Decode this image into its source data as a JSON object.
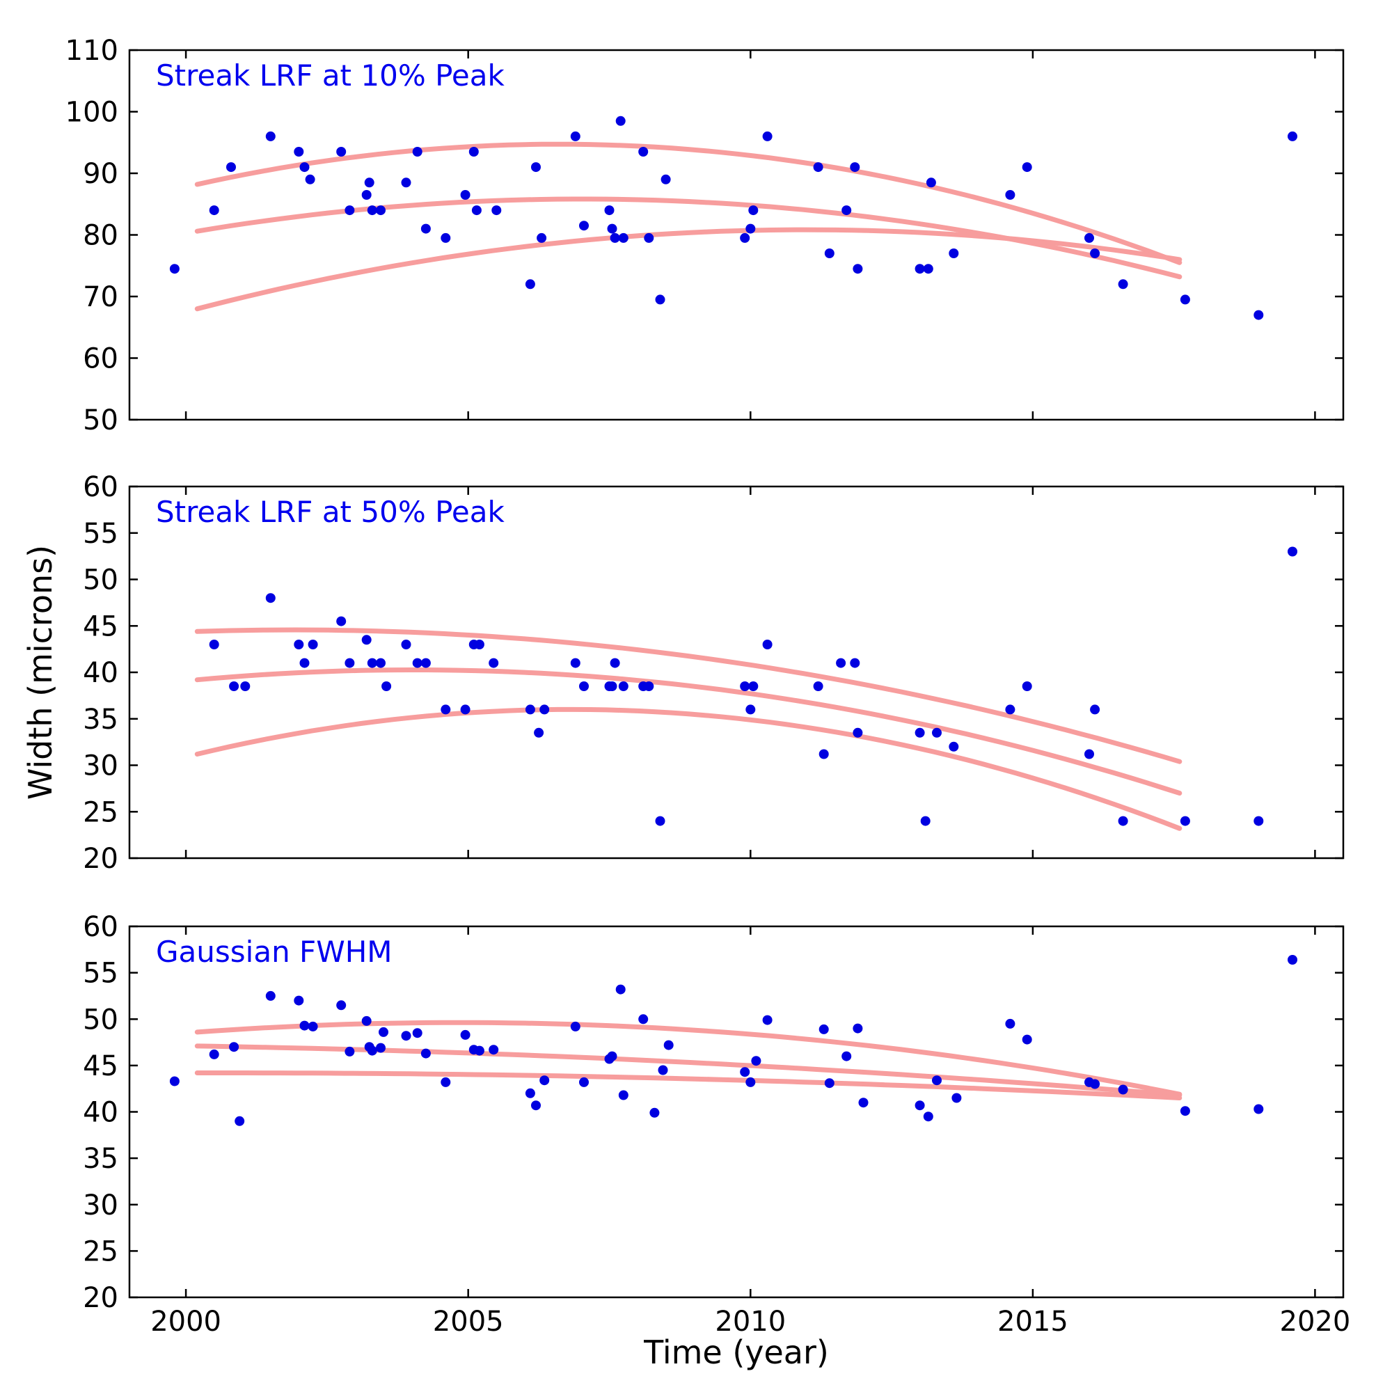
{
  "figure": {
    "xlabel": "Time (year)",
    "ylabel": "Width (microns)",
    "xlim": [
      1999,
      2020.5
    ],
    "x_ticks": [
      2000,
      2005,
      2010,
      2015,
      2020
    ],
    "colors": {
      "point": "#0000e0",
      "curve": "#f79d9d",
      "title": "#0000ee",
      "axis": "#000000"
    }
  },
  "chart_data": [
    {
      "type": "scatter",
      "title": "Streak LRF at 10% Peak",
      "ylim": [
        50,
        110
      ],
      "y_ticks": [
        50,
        60,
        70,
        80,
        90,
        100,
        110
      ],
      "show_x_tick_labels": false,
      "points": [
        [
          1999.8,
          74.5
        ],
        [
          2000.5,
          84
        ],
        [
          2000.8,
          91
        ],
        [
          2001.5,
          96
        ],
        [
          2002.0,
          93.5
        ],
        [
          2002.1,
          91
        ],
        [
          2002.2,
          89
        ],
        [
          2002.75,
          93.5
        ],
        [
          2002.9,
          84
        ],
        [
          2003.2,
          86.5
        ],
        [
          2003.25,
          88.5
        ],
        [
          2003.3,
          84
        ],
        [
          2003.45,
          84
        ],
        [
          2003.9,
          88.5
        ],
        [
          2004.1,
          93.5
        ],
        [
          2004.25,
          81
        ],
        [
          2004.6,
          79.5
        ],
        [
          2004.95,
          86.5
        ],
        [
          2005.1,
          93.5
        ],
        [
          2005.15,
          84
        ],
        [
          2005.5,
          84
        ],
        [
          2006.1,
          72
        ],
        [
          2006.2,
          91
        ],
        [
          2006.3,
          79.5
        ],
        [
          2006.9,
          96
        ],
        [
          2007.05,
          81.5
        ],
        [
          2007.5,
          84
        ],
        [
          2007.55,
          81
        ],
        [
          2007.6,
          79.5
        ],
        [
          2007.7,
          98.5
        ],
        [
          2007.75,
          79.5
        ],
        [
          2008.1,
          93.5
        ],
        [
          2008.2,
          79.5
        ],
        [
          2008.4,
          69.5
        ],
        [
          2008.5,
          89
        ],
        [
          2009.9,
          79.5
        ],
        [
          2010.0,
          81
        ],
        [
          2010.05,
          84
        ],
        [
          2010.3,
          96
        ],
        [
          2011.2,
          91
        ],
        [
          2011.4,
          77
        ],
        [
          2011.7,
          84
        ],
        [
          2011.85,
          91
        ],
        [
          2011.9,
          74.5
        ],
        [
          2013.0,
          74.5
        ],
        [
          2013.15,
          74.5
        ],
        [
          2013.2,
          88.5
        ],
        [
          2013.6,
          77
        ],
        [
          2014.6,
          86.5
        ],
        [
          2014.9,
          91
        ],
        [
          2016.0,
          79.5
        ],
        [
          2016.1,
          77
        ],
        [
          2016.6,
          72
        ],
        [
          2017.7,
          69.5
        ],
        [
          2019.0,
          67
        ],
        [
          2019.6,
          96
        ]
      ],
      "curves": [
        {
          "anchors": [
            [
              2000.2,
              88.2
            ],
            [
              2007.5,
              94.6
            ],
            [
              2017.6,
              75.5
            ]
          ]
        },
        {
          "anchors": [
            [
              2000.2,
              80.6
            ],
            [
              2007.5,
              85.8
            ],
            [
              2017.6,
              73.2
            ]
          ]
        },
        {
          "anchors": [
            [
              2000.2,
              68.0
            ],
            [
              2009.0,
              80.4
            ],
            [
              2017.6,
              76.0
            ]
          ]
        }
      ]
    },
    {
      "type": "scatter",
      "title": "Streak LRF at 50% Peak",
      "ylim": [
        20,
        60
      ],
      "y_ticks": [
        20,
        25,
        30,
        35,
        40,
        45,
        50,
        55,
        60
      ],
      "show_x_tick_labels": false,
      "points": [
        [
          2000.5,
          43
        ],
        [
          2000.85,
          38.5
        ],
        [
          2001.05,
          38.5
        ],
        [
          2001.5,
          48
        ],
        [
          2002.0,
          43
        ],
        [
          2002.1,
          41
        ],
        [
          2002.25,
          43
        ],
        [
          2002.75,
          45.5
        ],
        [
          2002.9,
          41
        ],
        [
          2003.2,
          43.5
        ],
        [
          2003.3,
          41
        ],
        [
          2003.45,
          41
        ],
        [
          2003.55,
          38.5
        ],
        [
          2003.9,
          43
        ],
        [
          2004.1,
          41
        ],
        [
          2004.25,
          41
        ],
        [
          2004.6,
          36
        ],
        [
          2004.95,
          36
        ],
        [
          2005.1,
          43
        ],
        [
          2005.2,
          43
        ],
        [
          2005.45,
          41
        ],
        [
          2006.1,
          36
        ],
        [
          2006.25,
          33.5
        ],
        [
          2006.35,
          36
        ],
        [
          2006.9,
          41
        ],
        [
          2007.05,
          38.5
        ],
        [
          2007.5,
          38.5
        ],
        [
          2007.55,
          38.5
        ],
        [
          2007.6,
          41
        ],
        [
          2007.75,
          38.5
        ],
        [
          2008.1,
          38.5
        ],
        [
          2008.2,
          38.5
        ],
        [
          2008.4,
          24
        ],
        [
          2009.9,
          38.5
        ],
        [
          2010.0,
          36
        ],
        [
          2010.05,
          38.5
        ],
        [
          2010.3,
          43
        ],
        [
          2011.2,
          38.5
        ],
        [
          2011.3,
          31.2
        ],
        [
          2011.6,
          41
        ],
        [
          2011.85,
          41
        ],
        [
          2011.9,
          33.5
        ],
        [
          2013.0,
          33.5
        ],
        [
          2013.1,
          24
        ],
        [
          2013.3,
          33.5
        ],
        [
          2013.6,
          32
        ],
        [
          2014.6,
          36
        ],
        [
          2014.9,
          38.5
        ],
        [
          2016.0,
          31.2
        ],
        [
          2016.1,
          36
        ],
        [
          2016.6,
          24
        ],
        [
          2017.7,
          24
        ],
        [
          2019.0,
          24
        ],
        [
          2019.6,
          53
        ]
      ],
      "curves": [
        {
          "anchors": [
            [
              2000.2,
              44.4
            ],
            [
              2006.0,
              43.6
            ],
            [
              2017.6,
              30.4
            ]
          ]
        },
        {
          "anchors": [
            [
              2000.2,
              39.2
            ],
            [
              2005.0,
              40.2
            ],
            [
              2017.6,
              27.0
            ]
          ]
        },
        {
          "anchors": [
            [
              2000.2,
              31.2
            ],
            [
              2007.0,
              36.0
            ],
            [
              2017.6,
              23.2
            ]
          ]
        }
      ]
    },
    {
      "type": "scatter",
      "title": "Gaussian FWHM",
      "ylim": [
        20,
        60
      ],
      "y_ticks": [
        20,
        25,
        30,
        35,
        40,
        45,
        50,
        55,
        60
      ],
      "show_x_tick_labels": true,
      "points": [
        [
          1999.8,
          43.3
        ],
        [
          2000.5,
          46.2
        ],
        [
          2000.85,
          47.0
        ],
        [
          2000.95,
          39.0
        ],
        [
          2001.5,
          52.5
        ],
        [
          2002.0,
          52.0
        ],
        [
          2002.1,
          49.3
        ],
        [
          2002.25,
          49.2
        ],
        [
          2002.75,
          51.5
        ],
        [
          2002.9,
          46.5
        ],
        [
          2003.2,
          49.8
        ],
        [
          2003.25,
          47.0
        ],
        [
          2003.3,
          46.6
        ],
        [
          2003.45,
          46.9
        ],
        [
          2003.5,
          48.6
        ],
        [
          2003.9,
          48.2
        ],
        [
          2004.1,
          48.5
        ],
        [
          2004.25,
          46.3
        ],
        [
          2004.6,
          43.2
        ],
        [
          2004.95,
          48.3
        ],
        [
          2005.1,
          46.7
        ],
        [
          2005.2,
          46.6
        ],
        [
          2005.45,
          46.7
        ],
        [
          2006.1,
          42.0
        ],
        [
          2006.2,
          40.7
        ],
        [
          2006.35,
          43.4
        ],
        [
          2006.9,
          49.2
        ],
        [
          2007.05,
          43.2
        ],
        [
          2007.5,
          45.7
        ],
        [
          2007.55,
          46.0
        ],
        [
          2007.7,
          53.2
        ],
        [
          2007.75,
          41.8
        ],
        [
          2008.1,
          50.0
        ],
        [
          2008.3,
          39.9
        ],
        [
          2008.45,
          44.5
        ],
        [
          2008.55,
          47.2
        ],
        [
          2009.9,
          44.3
        ],
        [
          2010.0,
          43.2
        ],
        [
          2010.1,
          45.5
        ],
        [
          2010.3,
          49.9
        ],
        [
          2011.3,
          48.9
        ],
        [
          2011.4,
          43.1
        ],
        [
          2011.7,
          46.0
        ],
        [
          2011.9,
          49.0
        ],
        [
          2012.0,
          41.0
        ],
        [
          2013.0,
          40.7
        ],
        [
          2013.15,
          39.5
        ],
        [
          2013.3,
          43.4
        ],
        [
          2013.65,
          41.5
        ],
        [
          2014.6,
          49.5
        ],
        [
          2014.9,
          47.8
        ],
        [
          2016.0,
          43.2
        ],
        [
          2016.1,
          43.0
        ],
        [
          2016.6,
          42.4
        ],
        [
          2017.7,
          40.1
        ],
        [
          2019.0,
          40.3
        ],
        [
          2019.6,
          56.4
        ]
      ],
      "curves": [
        {
          "anchors": [
            [
              2000.2,
              48.6
            ],
            [
              2006.5,
              49.5
            ],
            [
              2017.6,
              41.9
            ]
          ]
        },
        {
          "anchors": [
            [
              2000.2,
              47.1
            ],
            [
              2008.0,
              45.6
            ],
            [
              2017.6,
              41.8
            ]
          ]
        },
        {
          "anchors": [
            [
              2000.2,
              44.2
            ],
            [
              2008.0,
              43.7
            ],
            [
              2017.6,
              41.5
            ]
          ]
        }
      ]
    }
  ]
}
